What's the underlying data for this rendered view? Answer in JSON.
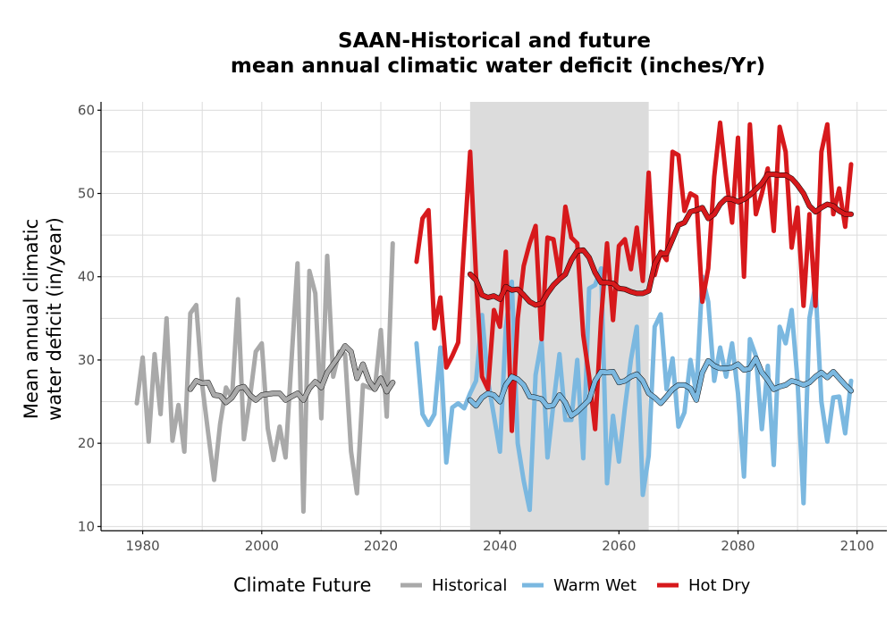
{
  "chart_data": {
    "type": "line",
    "title": [
      "SAAN-Historical and future",
      "mean annual climatic water deficit (inches/Yr)"
    ],
    "ylabel": [
      "Mean annual climatic",
      "water deficit (in/year)"
    ],
    "xlabel": "",
    "xlim": [
      1973,
      2105
    ],
    "ylim": [
      9.5,
      61
    ],
    "xticks": [
      1980,
      2000,
      2020,
      2040,
      2060,
      2080,
      2100
    ],
    "yticks": [
      10,
      20,
      30,
      40,
      50,
      60
    ],
    "grid": true,
    "shaded_period": [
      2035,
      2065
    ],
    "shaded_color": "#dcdcdc",
    "legend": {
      "title": "Climate Future",
      "position": "bottom"
    },
    "series": [
      {
        "name": "Historical",
        "color": "#a9a9a9",
        "x": [
          1979,
          1980,
          1981,
          1982,
          1983,
          1984,
          1985,
          1986,
          1987,
          1988,
          1989,
          1990,
          1991,
          1992,
          1993,
          1994,
          1995,
          1996,
          1997,
          1998,
          1999,
          2000,
          2001,
          2002,
          2003,
          2004,
          2005,
          2006,
          2007,
          2008,
          2009,
          2010,
          2011,
          2012,
          2013,
          2014,
          2015,
          2016,
          2017,
          2018,
          2019,
          2020,
          2021,
          2022
        ],
        "values": [
          24.8,
          30.3,
          20.2,
          30.7,
          23.5,
          35,
          20.3,
          24.6,
          19,
          35.6,
          36.6,
          27,
          21.2,
          15.6,
          22.3,
          26.7,
          25.4,
          37.3,
          20.5,
          25.4,
          31,
          32,
          21.8,
          18,
          22,
          18.3,
          30,
          41.6,
          11.8,
          40.7,
          38,
          23,
          42.5,
          28,
          31,
          30.7,
          19,
          14,
          27,
          26.7,
          26.5,
          33.6,
          23.2,
          44
        ]
      },
      {
        "name": "Warm Wet",
        "color": "#7bb8e0",
        "x": [
          2026,
          2027,
          2028,
          2029,
          2030,
          2031,
          2032,
          2033,
          2034,
          2035,
          2036,
          2037,
          2038,
          2039,
          2040,
          2041,
          2042,
          2043,
          2044,
          2045,
          2046,
          2047,
          2048,
          2049,
          2050,
          2051,
          2052,
          2053,
          2054,
          2055,
          2056,
          2057,
          2058,
          2059,
          2060,
          2061,
          2062,
          2063,
          2064,
          2065,
          2066,
          2067,
          2068,
          2069,
          2070,
          2071,
          2072,
          2073,
          2074,
          2075,
          2076,
          2077,
          2078,
          2079,
          2080,
          2081,
          2082,
          2083,
          2084,
          2085,
          2086,
          2087,
          2088,
          2089,
          2090,
          2091,
          2092,
          2093,
          2094,
          2095,
          2096,
          2097,
          2098,
          2099
        ],
        "values": [
          32,
          23.5,
          22.2,
          23.5,
          31.5,
          17.7,
          24.3,
          24.8,
          24.2,
          26,
          27.5,
          35.4,
          27.5,
          23.3,
          19,
          34,
          39.4,
          20,
          15.5,
          12,
          28.2,
          32.3,
          18.3,
          24.8,
          30.7,
          22.8,
          22.8,
          30,
          18.2,
          38.6,
          39,
          41,
          15.2,
          23.3,
          17.8,
          24.3,
          30,
          34,
          13.8,
          18.5,
          34,
          35.5,
          26.5,
          30.2,
          22,
          23.7,
          30,
          26,
          40,
          37,
          27.5,
          31.5,
          28,
          32,
          26,
          16,
          32.5,
          30.5,
          21.7,
          29.3,
          17.4,
          34,
          32,
          36,
          27.5,
          12.8,
          35,
          39,
          25,
          20.2,
          25.5,
          25.6,
          21.2,
          27.5
        ]
      },
      {
        "name": "Hot Dry",
        "color": "#d7191c",
        "x": [
          2026,
          2027,
          2028,
          2029,
          2030,
          2031,
          2032,
          2033,
          2034,
          2035,
          2036,
          2037,
          2038,
          2039,
          2040,
          2041,
          2042,
          2043,
          2044,
          2045,
          2046,
          2047,
          2048,
          2049,
          2050,
          2051,
          2052,
          2053,
          2054,
          2055,
          2056,
          2057,
          2058,
          2059,
          2060,
          2061,
          2062,
          2063,
          2064,
          2065,
          2066,
          2067,
          2068,
          2069,
          2070,
          2071,
          2072,
          2073,
          2074,
          2075,
          2076,
          2077,
          2078,
          2079,
          2080,
          2081,
          2082,
          2083,
          2084,
          2085,
          2086,
          2087,
          2088,
          2089,
          2090,
          2091,
          2092,
          2093,
          2094,
          2095,
          2096,
          2097,
          2098,
          2099
        ],
        "values": [
          41.8,
          47,
          48,
          33.8,
          37.5,
          29.1,
          30.5,
          32.1,
          44,
          55,
          40,
          28,
          26.5,
          36,
          34,
          43,
          21.5,
          35,
          41.3,
          44,
          46.1,
          32.5,
          44.7,
          44.5,
          40,
          48.4,
          44.7,
          44,
          33,
          28,
          21.7,
          35,
          44,
          34.8,
          43.7,
          44.5,
          40.9,
          45.9,
          39.5,
          52.5,
          40.2,
          43,
          42,
          55,
          54.6,
          47.9,
          50,
          49.6,
          37,
          41,
          52,
          58.5,
          52,
          46.5,
          56.7,
          40,
          58.3,
          47.5,
          50,
          53,
          45.5,
          58,
          55,
          43.5,
          48.3,
          36.5,
          47.5,
          36.5,
          55,
          58.3,
          47.5,
          50.6,
          46,
          53.5
        ]
      },
      {
        "name": "",
        "kind": "moving-average",
        "color": "#a9a9a9",
        "x": [
          1988,
          1989,
          1990,
          1991,
          1992,
          1993,
          1994,
          1995,
          1996,
          1997,
          1998,
          1999,
          2000,
          2001,
          2002,
          2003,
          2004,
          2005,
          2006,
          2007,
          2008,
          2009,
          2010,
          2011,
          2012,
          2013,
          2014,
          2015,
          2016,
          2017,
          2018,
          2019,
          2020,
          2021,
          2022
        ],
        "values": [
          26.5,
          27.5,
          27.2,
          27.3,
          25.8,
          25.7,
          24.9,
          25.5,
          26.6,
          26.8,
          25.8,
          25.2,
          25.8,
          25.9,
          26,
          26,
          25.2,
          25.6,
          26,
          25.2,
          26.6,
          27.4,
          26.7,
          28.5,
          29.5,
          30.5,
          31.7,
          31,
          27.8,
          29.5,
          27.5,
          26.5,
          27.8,
          26.2,
          27.3
        ]
      },
      {
        "name": "",
        "kind": "moving-average",
        "color": "#7bb8e0",
        "x": [
          2035,
          2036,
          2037,
          2038,
          2039,
          2040,
          2041,
          2042,
          2043,
          2044,
          2045,
          2046,
          2047,
          2048,
          2049,
          2050,
          2051,
          2052,
          2053,
          2054,
          2055,
          2056,
          2057,
          2058,
          2059,
          2060,
          2061,
          2062,
          2063,
          2064,
          2065,
          2066,
          2067,
          2068,
          2069,
          2070,
          2071,
          2072,
          2073,
          2074,
          2075,
          2076,
          2077,
          2078,
          2079,
          2080,
          2081,
          2082,
          2083,
          2084,
          2085,
          2086,
          2087,
          2088,
          2089,
          2090,
          2091,
          2092,
          2093,
          2094,
          2095,
          2096,
          2097,
          2098,
          2099
        ],
        "values": [
          25.2,
          24.5,
          25.5,
          26,
          25.8,
          25,
          27,
          28,
          27.7,
          27,
          25.6,
          25.5,
          25.3,
          24.4,
          24.6,
          25.8,
          24.9,
          23.3,
          23.8,
          24.5,
          25.2,
          27.5,
          28.6,
          28.5,
          28.6,
          27.3,
          27.5,
          28,
          28.3,
          27.5,
          26,
          25.5,
          24.8,
          25.6,
          26.5,
          27,
          27,
          26.6,
          25.2,
          28.5,
          29.9,
          29.3,
          29,
          29,
          29.1,
          29.5,
          28.8,
          29,
          30.2,
          28.5,
          27.6,
          26.5,
          26.8,
          27,
          27.5,
          27.3,
          27,
          27.3,
          28,
          28.5,
          27.9,
          28.6,
          27.8,
          27,
          26.3
        ]
      },
      {
        "name": "",
        "kind": "moving-average",
        "color": "#d7191c",
        "x": [
          2035,
          2036,
          2037,
          2038,
          2039,
          2040,
          2041,
          2042,
          2043,
          2044,
          2045,
          2046,
          2047,
          2048,
          2049,
          2050,
          2051,
          2052,
          2053,
          2054,
          2055,
          2056,
          2057,
          2058,
          2059,
          2060,
          2061,
          2062,
          2063,
          2064,
          2065,
          2066,
          2067,
          2068,
          2069,
          2070,
          2071,
          2072,
          2073,
          2074,
          2075,
          2076,
          2077,
          2078,
          2079,
          2080,
          2081,
          2082,
          2083,
          2084,
          2085,
          2086,
          2087,
          2088,
          2089,
          2090,
          2091,
          2092,
          2093,
          2094,
          2095,
          2096,
          2097,
          2098,
          2099
        ],
        "values": [
          40.3,
          39.6,
          37.8,
          37.5,
          37.7,
          37.3,
          38.8,
          38.4,
          38.5,
          37.8,
          37,
          36.6,
          36.8,
          38,
          39,
          39.7,
          40.3,
          42,
          43.1,
          43.2,
          42.3,
          40.5,
          39.3,
          39.3,
          39.2,
          38.6,
          38.5,
          38.2,
          38,
          38,
          38.3,
          41.5,
          42.8,
          42.8,
          44.5,
          46.2,
          46.5,
          47.8,
          48,
          48.3,
          47,
          47.5,
          48.7,
          49.4,
          49.3,
          49,
          49.3,
          49.8,
          50.5,
          51.2,
          52.3,
          52.3,
          52.2,
          52.2,
          51.8,
          51,
          50,
          48.5,
          47.8,
          48.3,
          48.7,
          48.5,
          47.9,
          47.5,
          47.5
        ]
      }
    ]
  }
}
